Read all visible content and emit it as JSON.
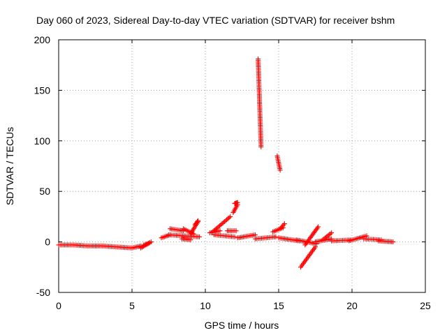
{
  "chart_data": {
    "type": "scatter",
    "title": "Day 060 of 2023, Sidereal Day-to-day VTEC variation (SDTVAR) for receiver bshm",
    "xlabel": "GPS time / hours",
    "ylabel": "SDTVAR / TECUs",
    "xlim": [
      0,
      25
    ],
    "ylim": [
      -50,
      200
    ],
    "xticks": [
      0,
      5,
      10,
      15,
      20,
      25
    ],
    "yticks": [
      -50,
      0,
      50,
      100,
      150,
      200
    ],
    "grid": true,
    "marker": "plus",
    "color": "#ff0000",
    "series": [
      {
        "name": "SDTVAR",
        "segments": [
          {
            "x0": 0.0,
            "x1": 1.0,
            "y0": -3,
            "y1": -3
          },
          {
            "x0": 1.0,
            "x1": 2.0,
            "y0": -3,
            "y1": -4
          },
          {
            "x0": 2.0,
            "x1": 3.0,
            "y0": -4,
            "y1": -4
          },
          {
            "x0": 3.0,
            "x1": 4.0,
            "y0": -4,
            "y1": -5
          },
          {
            "x0": 4.0,
            "x1": 5.0,
            "y0": -5,
            "y1": -6
          },
          {
            "x0": 5.0,
            "x1": 5.6,
            "y0": -6,
            "y1": -4
          },
          {
            "x0": 5.6,
            "x1": 6.3,
            "y0": -6,
            "y1": 0
          },
          {
            "x0": 5.8,
            "x1": 6.2,
            "y0": -3,
            "y1": -1
          },
          {
            "x0": 7.0,
            "x1": 7.6,
            "y0": 4,
            "y1": 7
          },
          {
            "x0": 7.5,
            "x1": 9.6,
            "y0": 7,
            "y1": 5
          },
          {
            "x0": 7.6,
            "x1": 8.5,
            "y0": 13,
            "y1": 11
          },
          {
            "x0": 8.4,
            "x1": 9.0,
            "y0": 3,
            "y1": 2
          },
          {
            "x0": 8.5,
            "x1": 9.2,
            "y0": 13,
            "y1": 8
          },
          {
            "x0": 9.0,
            "x1": 9.5,
            "y0": 8,
            "y1": 20
          },
          {
            "x0": 9.3,
            "x1": 9.5,
            "y0": 17,
            "y1": 21
          },
          {
            "x0": 10.3,
            "x1": 11.0,
            "y0": 9,
            "y1": 11
          },
          {
            "x0": 10.5,
            "x1": 11.7,
            "y0": 10,
            "y1": 25
          },
          {
            "x0": 10.6,
            "x1": 12.0,
            "y0": 7,
            "y1": 5
          },
          {
            "x0": 11.5,
            "x1": 12.1,
            "y0": 11,
            "y1": 11
          },
          {
            "x0": 11.9,
            "x1": 12.2,
            "y0": 29,
            "y1": 37
          },
          {
            "x0": 12.0,
            "x1": 12.2,
            "y0": 38,
            "y1": 39
          },
          {
            "x0": 12.2,
            "x1": 13.4,
            "y0": 4,
            "y1": 7
          },
          {
            "x0": 13.4,
            "x1": 14.8,
            "y0": 3,
            "y1": 5
          },
          {
            "x0": 13.6,
            "x1": 13.8,
            "y0": 181,
            "y1": 94
          },
          {
            "x0": 14.9,
            "x1": 15.1,
            "y0": 85,
            "y1": 71
          },
          {
            "x0": 14.6,
            "x1": 15.3,
            "y0": 10,
            "y1": 14
          },
          {
            "x0": 15.0,
            "x1": 16.4,
            "y0": 4,
            "y1": 1
          },
          {
            "x0": 15.1,
            "x1": 15.4,
            "y0": 13,
            "y1": 18
          },
          {
            "x0": 16.2,
            "x1": 17.6,
            "y0": 2,
            "y1": -2
          },
          {
            "x0": 16.5,
            "x1": 17.5,
            "y0": -25,
            "y1": -5
          },
          {
            "x0": 16.8,
            "x1": 17.7,
            "y0": -3,
            "y1": 15
          },
          {
            "x0": 17.5,
            "x1": 18.6,
            "y0": 0,
            "y1": 3
          },
          {
            "x0": 18.0,
            "x1": 18.6,
            "y0": 2,
            "y1": 9
          },
          {
            "x0": 18.6,
            "x1": 20.0,
            "y0": 1,
            "y1": 2
          },
          {
            "x0": 19.8,
            "x1": 21.0,
            "y0": 1,
            "y1": 6
          },
          {
            "x0": 20.8,
            "x1": 22.0,
            "y0": 3,
            "y1": 2
          },
          {
            "x0": 21.8,
            "x1": 22.8,
            "y0": 1,
            "y1": 0
          }
        ]
      }
    ]
  }
}
